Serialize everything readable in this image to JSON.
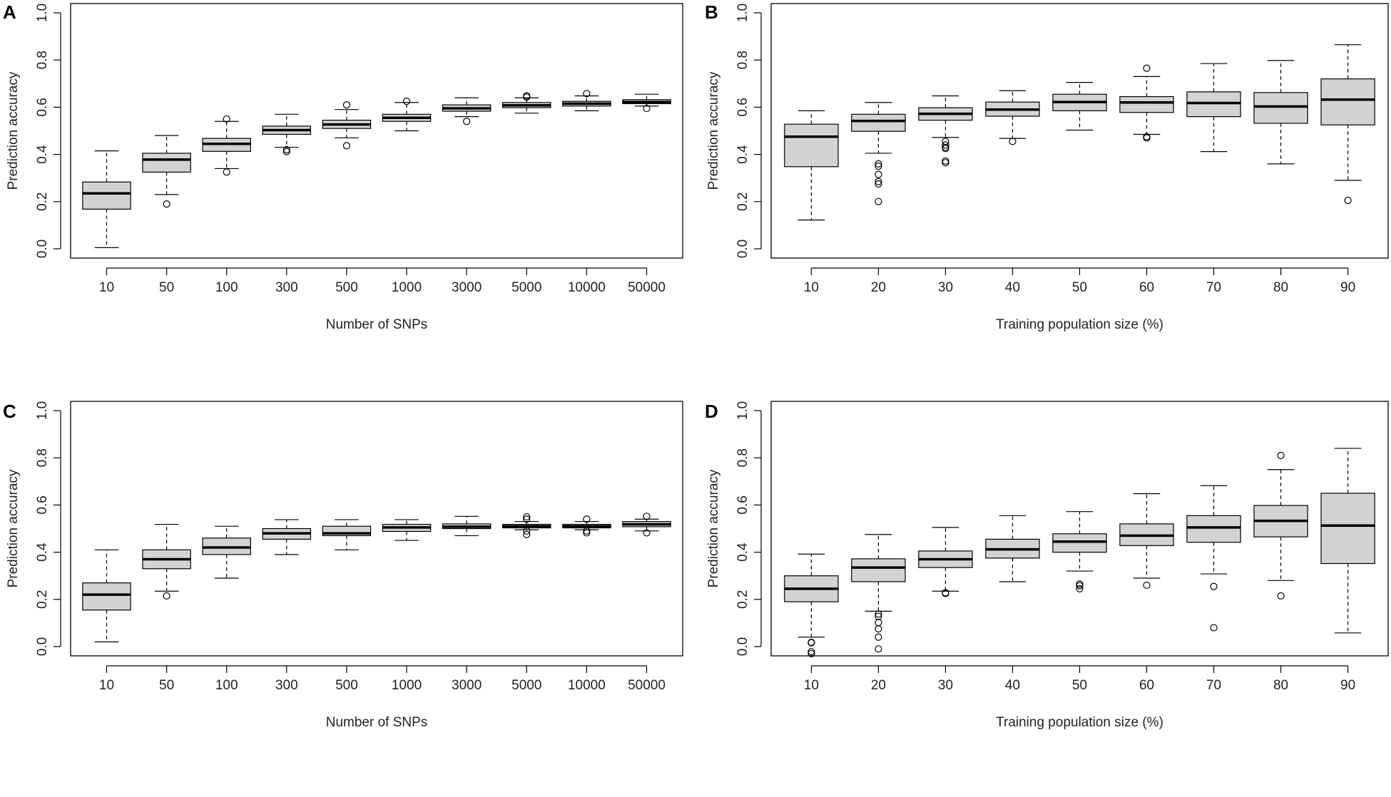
{
  "figure": {
    "box_fill": "#d3d3d3",
    "line_color": "#000000"
  },
  "chart_data": [
    {
      "id": "A",
      "type": "boxplot",
      "panel_label": "A",
      "xlabel": "Number of SNPs",
      "ylabel": "Prediction accuracy",
      "ylim": [
        0,
        1
      ],
      "yticks": [
        "0.0",
        "0.2",
        "0.4",
        "0.6",
        "0.8",
        "1.0"
      ],
      "categories": [
        "10",
        "50",
        "100",
        "300",
        "500",
        "1000",
        "3000",
        "5000",
        "10000",
        "50000"
      ],
      "boxes": [
        {
          "min": 0.005,
          "q1": 0.168,
          "median": 0.235,
          "q3": 0.283,
          "max": 0.415,
          "outliers": []
        },
        {
          "min": 0.23,
          "q1": 0.325,
          "median": 0.378,
          "q3": 0.405,
          "max": 0.48,
          "outliers": [
            0.19
          ]
        },
        {
          "min": 0.34,
          "q1": 0.413,
          "median": 0.445,
          "q3": 0.468,
          "max": 0.54,
          "outliers": [
            0.55,
            0.325
          ]
        },
        {
          "min": 0.43,
          "q1": 0.485,
          "median": 0.503,
          "q3": 0.52,
          "max": 0.57,
          "outliers": [
            0.42,
            0.412
          ]
        },
        {
          "min": 0.47,
          "q1": 0.51,
          "median": 0.527,
          "q3": 0.545,
          "max": 0.59,
          "outliers": [
            0.61,
            0.437
          ]
        },
        {
          "min": 0.5,
          "q1": 0.54,
          "median": 0.555,
          "q3": 0.57,
          "max": 0.62,
          "outliers": [
            0.625
          ]
        },
        {
          "min": 0.56,
          "q1": 0.583,
          "median": 0.595,
          "q3": 0.61,
          "max": 0.64,
          "outliers": [
            0.54
          ]
        },
        {
          "min": 0.575,
          "q1": 0.598,
          "median": 0.608,
          "q3": 0.62,
          "max": 0.64,
          "outliers": [
            0.648,
            0.643
          ]
        },
        {
          "min": 0.585,
          "q1": 0.605,
          "median": 0.615,
          "q3": 0.625,
          "max": 0.648,
          "outliers": [
            0.658
          ]
        },
        {
          "min": 0.605,
          "q1": 0.615,
          "median": 0.622,
          "q3": 0.632,
          "max": 0.655,
          "outliers": [
            0.595
          ]
        }
      ]
    },
    {
      "id": "B",
      "type": "boxplot",
      "panel_label": "B",
      "xlabel": "Training population size (%)",
      "ylabel": "Prediction accuracy",
      "ylim": [
        0,
        1
      ],
      "yticks": [
        "0.0",
        "0.2",
        "0.4",
        "0.6",
        "0.8",
        "1.0"
      ],
      "categories": [
        "10",
        "20",
        "30",
        "40",
        "50",
        "60",
        "70",
        "80",
        "90"
      ],
      "boxes": [
        {
          "min": 0.122,
          "q1": 0.348,
          "median": 0.475,
          "q3": 0.528,
          "max": 0.585,
          "outliers": []
        },
        {
          "min": 0.405,
          "q1": 0.498,
          "median": 0.542,
          "q3": 0.57,
          "max": 0.62,
          "outliers": [
            0.36,
            0.35,
            0.315,
            0.285,
            0.275,
            0.2
          ]
        },
        {
          "min": 0.472,
          "q1": 0.545,
          "median": 0.572,
          "q3": 0.598,
          "max": 0.648,
          "outliers": [
            0.455,
            0.44,
            0.43,
            0.425,
            0.372,
            0.365
          ]
        },
        {
          "min": 0.468,
          "q1": 0.562,
          "median": 0.59,
          "q3": 0.622,
          "max": 0.67,
          "outliers": [
            0.455
          ]
        },
        {
          "min": 0.503,
          "q1": 0.585,
          "median": 0.622,
          "q3": 0.655,
          "max": 0.705,
          "outliers": []
        },
        {
          "min": 0.485,
          "q1": 0.578,
          "median": 0.62,
          "q3": 0.645,
          "max": 0.73,
          "outliers": [
            0.765,
            0.475,
            0.47
          ]
        },
        {
          "min": 0.412,
          "q1": 0.56,
          "median": 0.618,
          "q3": 0.665,
          "max": 0.785,
          "outliers": []
        },
        {
          "min": 0.36,
          "q1": 0.532,
          "median": 0.603,
          "q3": 0.662,
          "max": 0.798,
          "outliers": []
        },
        {
          "min": 0.29,
          "q1": 0.525,
          "median": 0.632,
          "q3": 0.72,
          "max": 0.865,
          "outliers": [
            0.205
          ]
        }
      ]
    },
    {
      "id": "C",
      "type": "boxplot",
      "panel_label": "C",
      "xlabel": "Number of SNPs",
      "ylabel": "Prediction accuracy",
      "ylim": [
        0,
        1
      ],
      "yticks": [
        "0.0",
        "0.2",
        "0.4",
        "0.6",
        "0.8",
        "1.0"
      ],
      "categories": [
        "10",
        "50",
        "100",
        "300",
        "500",
        "1000",
        "3000",
        "5000",
        "10000",
        "50000"
      ],
      "boxes": [
        {
          "min": 0.02,
          "q1": 0.155,
          "median": 0.22,
          "q3": 0.27,
          "max": 0.41,
          "outliers": []
        },
        {
          "min": 0.235,
          "q1": 0.33,
          "median": 0.37,
          "q3": 0.41,
          "max": 0.518,
          "outliers": [
            0.215
          ]
        },
        {
          "min": 0.29,
          "q1": 0.39,
          "median": 0.42,
          "q3": 0.46,
          "max": 0.51,
          "outliers": []
        },
        {
          "min": 0.39,
          "q1": 0.455,
          "median": 0.48,
          "q3": 0.5,
          "max": 0.538,
          "outliers": []
        },
        {
          "min": 0.41,
          "q1": 0.47,
          "median": 0.48,
          "q3": 0.51,
          "max": 0.538,
          "outliers": []
        },
        {
          "min": 0.45,
          "q1": 0.488,
          "median": 0.505,
          "q3": 0.518,
          "max": 0.538,
          "outliers": []
        },
        {
          "min": 0.47,
          "q1": 0.5,
          "median": 0.508,
          "q3": 0.52,
          "max": 0.552,
          "outliers": []
        },
        {
          "min": 0.495,
          "q1": 0.503,
          "median": 0.51,
          "q3": 0.518,
          "max": 0.53,
          "outliers": [
            0.55,
            0.54,
            0.49,
            0.475
          ]
        },
        {
          "min": 0.495,
          "q1": 0.503,
          "median": 0.51,
          "q3": 0.518,
          "max": 0.53,
          "outliers": [
            0.54,
            0.49,
            0.482
          ]
        },
        {
          "min": 0.49,
          "q1": 0.508,
          "median": 0.518,
          "q3": 0.53,
          "max": 0.54,
          "outliers": [
            0.552,
            0.482
          ]
        }
      ]
    },
    {
      "id": "D",
      "type": "boxplot",
      "panel_label": "D",
      "xlabel": "Training population size (%)",
      "ylabel": "Prediction accuracy",
      "ylim": [
        0,
        1
      ],
      "yticks": [
        "0.0",
        "0.2",
        "0.4",
        "0.6",
        "0.8",
        "1.0"
      ],
      "categories": [
        "10",
        "20",
        "30",
        "40",
        "50",
        "60",
        "70",
        "80",
        "90"
      ],
      "boxes": [
        {
          "min": 0.04,
          "q1": 0.19,
          "median": 0.245,
          "q3": 0.3,
          "max": 0.392,
          "outliers": [
            0.018,
            0.016,
            -0.022,
            -0.03
          ]
        },
        {
          "min": 0.15,
          "q1": 0.275,
          "median": 0.335,
          "q3": 0.372,
          "max": 0.475,
          "outliers": [
            0.138,
            0.128,
            0.102,
            0.075,
            0.04,
            -0.01
          ]
        },
        {
          "min": 0.235,
          "q1": 0.335,
          "median": 0.37,
          "q3": 0.405,
          "max": 0.505,
          "outliers": [
            0.228,
            0.225
          ]
        },
        {
          "min": 0.275,
          "q1": 0.375,
          "median": 0.412,
          "q3": 0.455,
          "max": 0.555,
          "outliers": []
        },
        {
          "min": 0.32,
          "q1": 0.4,
          "median": 0.445,
          "q3": 0.478,
          "max": 0.572,
          "outliers": [
            0.265,
            0.258,
            0.245
          ]
        },
        {
          "min": 0.29,
          "q1": 0.428,
          "median": 0.47,
          "q3": 0.52,
          "max": 0.648,
          "outliers": [
            0.26
          ]
        },
        {
          "min": 0.308,
          "q1": 0.442,
          "median": 0.505,
          "q3": 0.555,
          "max": 0.682,
          "outliers": [
            0.255,
            0.08
          ]
        },
        {
          "min": 0.28,
          "q1": 0.465,
          "median": 0.533,
          "q3": 0.598,
          "max": 0.75,
          "outliers": [
            0.81,
            0.215
          ]
        },
        {
          "min": 0.058,
          "q1": 0.352,
          "median": 0.513,
          "q3": 0.65,
          "max": 0.84,
          "outliers": []
        }
      ]
    }
  ]
}
